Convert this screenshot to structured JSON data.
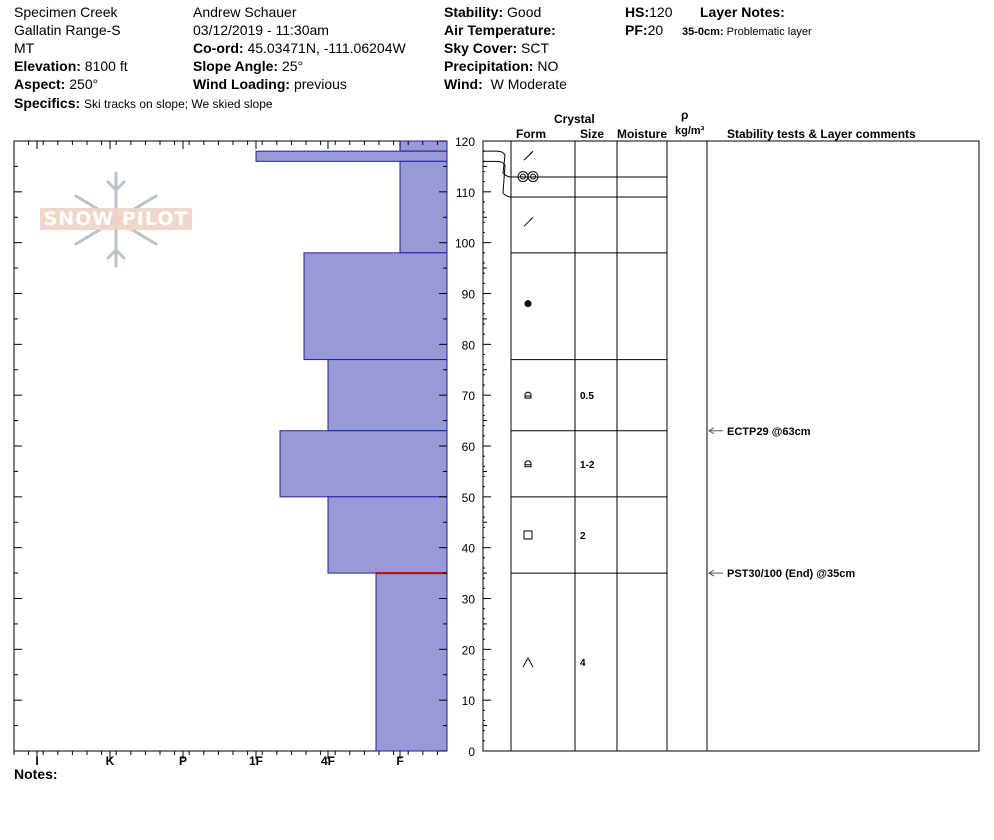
{
  "header": {
    "location": "Specimen Creek",
    "range": "Gallatin Range-S",
    "state": "MT",
    "elevation_label": "Elevation:",
    "elevation": "8100 ft",
    "aspect_label": "Aspect:",
    "aspect": "250°",
    "specifics_label": "Specifics:",
    "specifics": "Ski tracks on slope; We skied slope",
    "observer": "Andrew Schauer",
    "datetime": "03/12/2019 - 11:30am",
    "coord_label": "Co-ord:",
    "coord": "45.03471N, -111.06204W",
    "slope_label": "Slope Angle:",
    "slope": "25°",
    "wind_loading_label": "Wind Loading:",
    "wind_loading": "previous",
    "stability_label": "Stability:",
    "stability": "Good",
    "air_temp_label": "Air Temperature:",
    "sky_label": "Sky Cover:",
    "sky": "SCT",
    "precip_label": "Precipitation:",
    "precip": "NO",
    "wind_label": "Wind:",
    "wind": "W Moderate",
    "hs_label": "HS:",
    "hs": "120",
    "pf_label": "PF:",
    "pf": "20",
    "layer_notes_label": "Layer Notes:",
    "layer_note_range": "35-0cm:",
    "layer_note_text": "Problematic layer"
  },
  "logo_text": "SNOW PILOT",
  "table_headers": {
    "crystal": "Crystal",
    "form": "Form",
    "size": "Size",
    "moisture": "Moisture",
    "rho": "ρ",
    "density_unit": "kg/m³",
    "comments": "Stability tests & Layer comments"
  },
  "notes_label": "Notes:",
  "colors": {
    "layer_fill": "#9999d6",
    "layer_stroke": "#1c1cab",
    "weak_layer": "#cc0000",
    "test_arrow": "#555555"
  },
  "chart_data": {
    "type": "bar",
    "y_axis": {
      "range": [
        0,
        120
      ],
      "ticks": [
        0,
        10,
        20,
        30,
        40,
        50,
        60,
        70,
        80,
        90,
        100,
        110,
        120
      ]
    },
    "x_axis": {
      "categories": [
        "I",
        "K",
        "P",
        "1F",
        "4F",
        "F"
      ]
    },
    "layers": [
      {
        "top": 120,
        "bottom": 118,
        "hardness": "F"
      },
      {
        "top": 118,
        "bottom": 116,
        "hardness": "1F"
      },
      {
        "top": 116,
        "bottom": 98,
        "hardness": "F"
      },
      {
        "top": 98,
        "bottom": 77,
        "hardness": "4F+"
      },
      {
        "top": 77,
        "bottom": 63,
        "hardness": "4F"
      },
      {
        "top": 63,
        "bottom": 50,
        "hardness": "1F-"
      },
      {
        "top": 50,
        "bottom": 35,
        "hardness": "4F"
      },
      {
        "top": 35,
        "bottom": 0,
        "hardness": "F+"
      }
    ],
    "weak_layer_depth": 35,
    "crystals": [
      {
        "depth": 117,
        "form": "decomposing",
        "size": ""
      },
      {
        "depth": 113,
        "form": "rounded-clusters",
        "size": ""
      },
      {
        "depth": 104,
        "form": "decomposing",
        "size": ""
      },
      {
        "depth": 88,
        "form": "rounded",
        "size": ""
      },
      {
        "depth": 70,
        "form": "mixed",
        "size": "0.5"
      },
      {
        "depth": 56.5,
        "form": "mixed",
        "size": "1-2"
      },
      {
        "depth": 42.5,
        "form": "faceted",
        "size": "2"
      },
      {
        "depth": 17.5,
        "form": "depth-hoar",
        "size": "4"
      }
    ],
    "tests": [
      {
        "depth": 63,
        "label": "ECTP29 @63cm"
      },
      {
        "depth": 35,
        "label": "PST30/100 (End) @35cm"
      }
    ]
  }
}
